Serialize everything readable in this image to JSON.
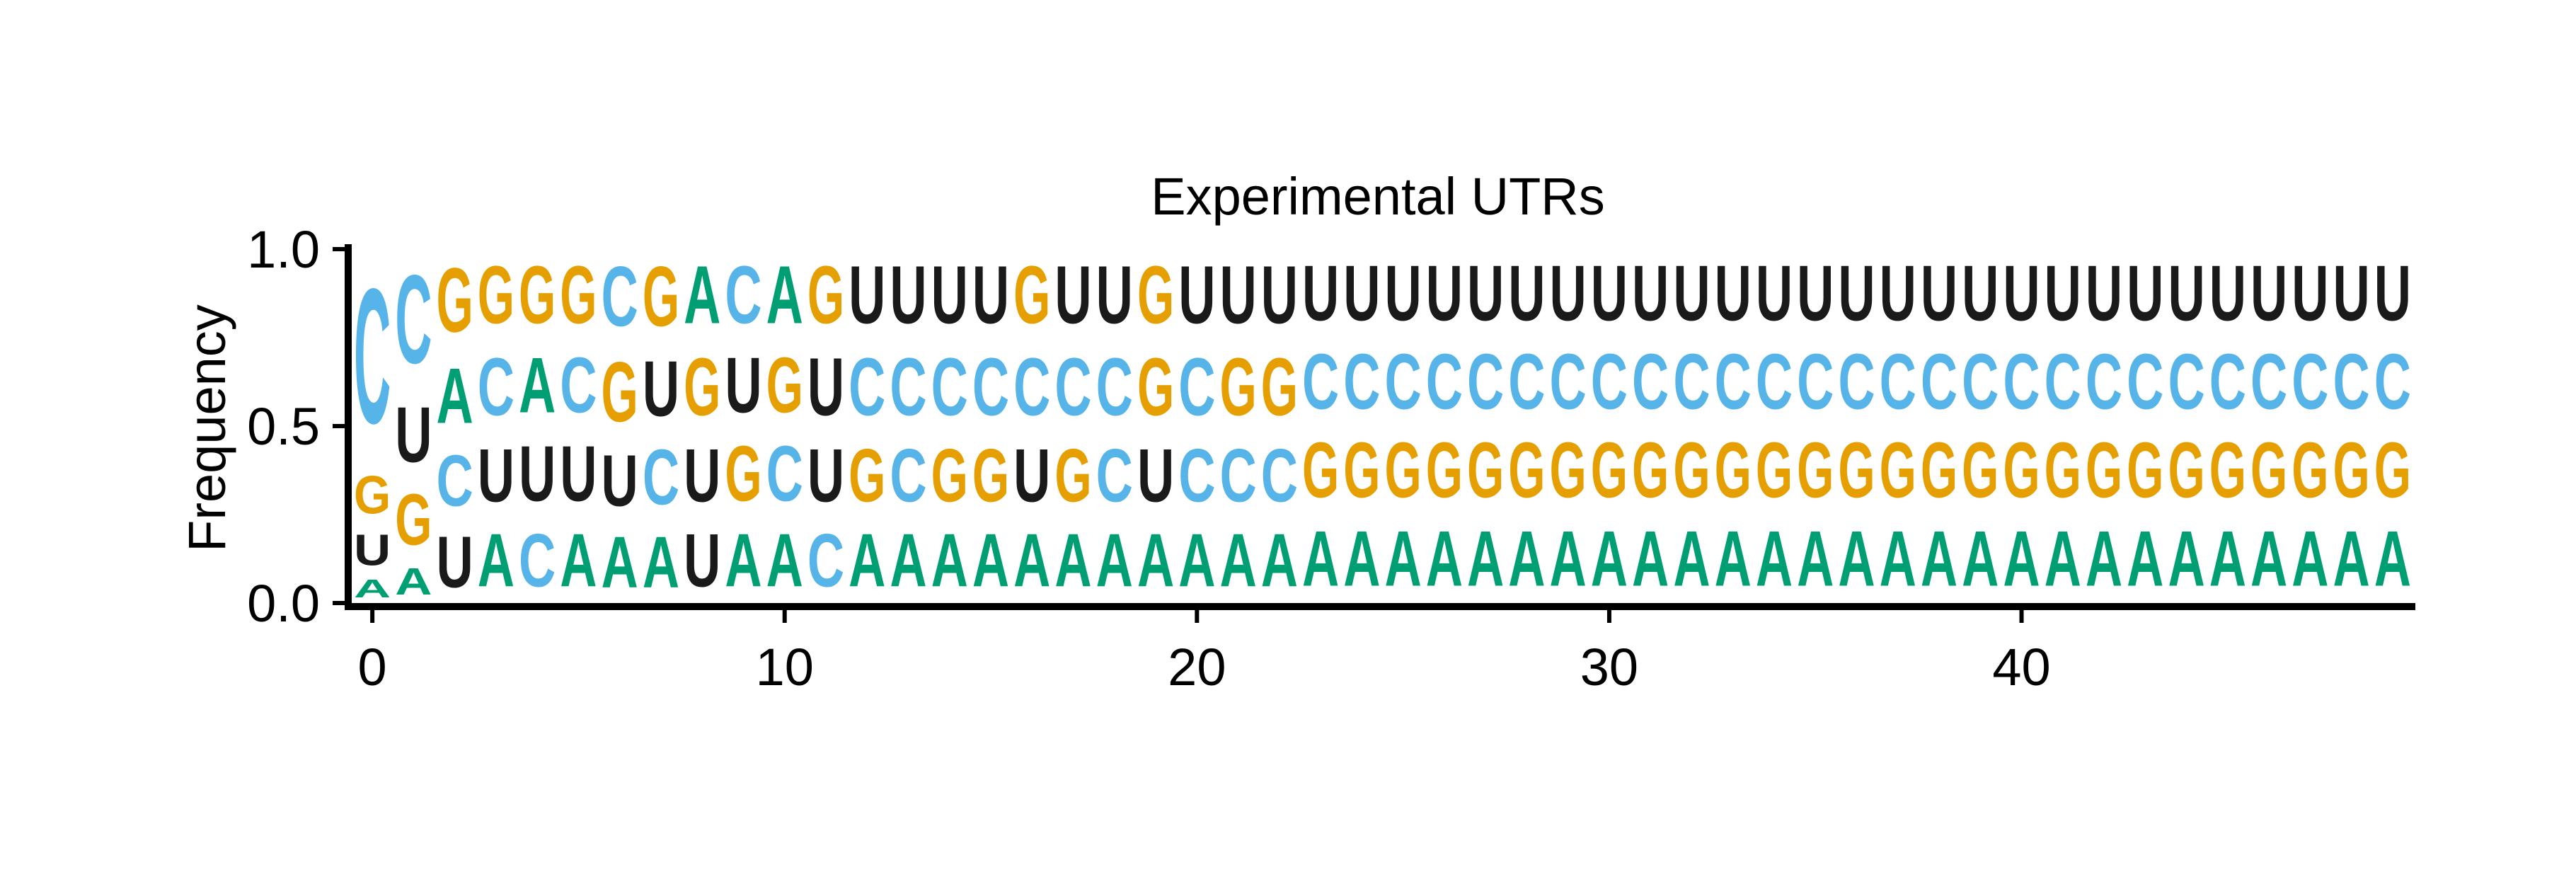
{
  "chart_data": {
    "type": "sequence-logo",
    "title": "Experimental UTRs",
    "xlabel": "",
    "ylabel": "Frequency",
    "xlim": [
      -0.5,
      49.5
    ],
    "ylim": [
      0.0,
      1.0
    ],
    "x_ticks": [
      0,
      10,
      20,
      30,
      40
    ],
    "y_ticks": [
      "0.0",
      "0.5",
      "1.0"
    ],
    "grid": false,
    "legend": "none",
    "alphabet": [
      "A",
      "C",
      "G",
      "U"
    ],
    "colors": {
      "A": "#009E73",
      "C": "#56B4E9",
      "G": "#E69F00",
      "U": "#1A1A1A"
    },
    "positions": [
      {
        "x": 0,
        "freqs": {
          "A": 0.08,
          "U": 0.14,
          "G": 0.17,
          "C": 0.61
        }
      },
      {
        "x": 1,
        "freqs": {
          "A": 0.12,
          "U": 0.25,
          "G": 0.23,
          "C": 0.4
        }
      },
      {
        "x": 2,
        "freqs": {
          "U": 0.23,
          "A": 0.25,
          "C": 0.23,
          "G": 0.29
        }
      },
      {
        "x": 3,
        "freqs": {
          "A": 0.24,
          "C": 0.26,
          "U": 0.24,
          "G": 0.26
        }
      },
      {
        "x": 4,
        "freqs": {
          "U": 0.25,
          "A": 0.25,
          "C": 0.24,
          "G": 0.26
        }
      },
      {
        "x": 5,
        "freqs": {
          "U": 0.25,
          "C": 0.25,
          "A": 0.24,
          "G": 0.26
        }
      },
      {
        "x": 6,
        "freqs": {
          "A": 0.23,
          "U": 0.23,
          "G": 0.27,
          "C": 0.27
        }
      },
      {
        "x": 7,
        "freqs": {
          "A": 0.23,
          "C": 0.25,
          "U": 0.25,
          "G": 0.27
        }
      },
      {
        "x": 8,
        "freqs": {
          "U": 0.24,
          "G": 0.26,
          "A": 0.26,
          "U2": 0.24
        }
      },
      {
        "x": 9,
        "freqs": {
          "A": 0.24,
          "G": 0.25,
          "C": 0.26,
          "U": 0.25
        }
      },
      {
        "x": 10,
        "freqs": {
          "A": 0.24,
          "A2": 0.26,
          "C": 0.25,
          "G": 0.25
        }
      },
      {
        "x": 11,
        "freqs": {
          "U": 0.26,
          "G": 0.26,
          "C": 0.24,
          "U2": 0.24
        }
      },
      {
        "x": 12,
        "freqs": {
          "A": 0.24,
          "C": 0.26,
          "G": 0.24,
          "U": 0.26
        }
      },
      {
        "x": 13,
        "freqs": {
          "A": 0.24,
          "C": 0.26,
          "C2": 0.24,
          "U": 0.26
        }
      },
      {
        "x": 14,
        "freqs": {
          "A": 0.24,
          "C": 0.26,
          "G": 0.24,
          "U": 0.26
        }
      },
      {
        "x": 15,
        "freqs": {
          "A": 0.24,
          "C": 0.26,
          "G": 0.24,
          "U": 0.26
        }
      },
      {
        "x": 16,
        "freqs": {
          "A": 0.24,
          "C": 0.26,
          "U": 0.24,
          "G": 0.26
        }
      },
      {
        "x": 17,
        "freqs": {
          "A": 0.24,
          "C": 0.26,
          "G": 0.24,
          "U": 0.26
        }
      },
      {
        "x": 18,
        "freqs": {
          "A": 0.24,
          "C": 0.26,
          "C2": 0.24,
          "U": 0.26
        }
      },
      {
        "x": 19,
        "freqs": {
          "A": 0.24,
          "G": 0.26,
          "U": 0.24,
          "G2": 0.26
        }
      },
      {
        "x": 20,
        "freqs": {
          "A": 0.24,
          "C": 0.26,
          "C2": 0.24,
          "U": 0.26
        }
      },
      {
        "x": 21,
        "freqs": {
          "A": 0.24,
          "G": 0.26,
          "C": 0.24,
          "U": 0.26
        }
      },
      {
        "x": 22,
        "freqs": {
          "A": 0.24,
          "G": 0.26,
          "C": 0.24,
          "U": 0.26
        }
      }
    ]
  }
}
